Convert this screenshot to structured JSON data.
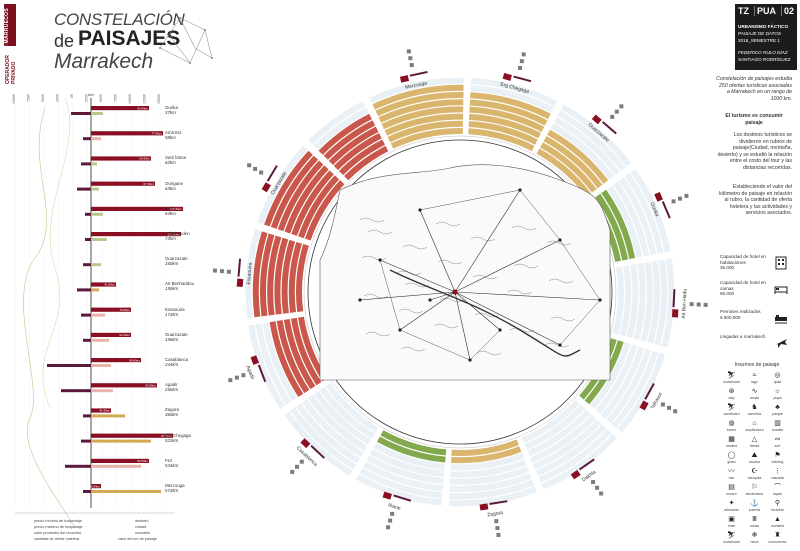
{
  "header": {
    "strip_title": "MARRAKECH\nMARRUECOS",
    "strip_sub": "OPERADOR\nPRIVADO",
    "title_line1": "CONSTELACIÓN",
    "title_de": "de",
    "title_paisajes": "PAISAJES",
    "title_city": "Marrakech"
  },
  "badge": {
    "tz": "TZ",
    "pua": "PUA",
    "num": "02",
    "line1": "URBANISMO FÁCTICO",
    "line2": "PAISAJE DE DATOS",
    "line3": "2018_SEMESTRE 1",
    "line4": "FEDERICO RULO DÍAZ",
    "line5": "SANTIAGO RODRÍGUEZ"
  },
  "intro_text": "Constelación de paisajes estudia 250 ofertas turísticas asociadas a Marrakech en un rango de 1000 km.",
  "subtitle": "El turismo es consumir paisaje",
  "para1": "Los destinos turísticos se dividieron en rubros de paisaje(Ciudad, montaña, desierto) y se estudió la relación entre el costo del tour y las distancias recorridas.",
  "para2": "Estableciendo el valor del kilómetro de paisaje en relación al rubro, la cantidad de oferta hotelera y las actividades y servicios asociados.",
  "stats": [
    {
      "label": "Capacidad de hotel en habitaciones\n35.000",
      "icon": "building-icon"
    },
    {
      "label": "Capacidad de hotel en camas\n65.000",
      "icon": "bed-icon"
    },
    {
      "label": "Pernotes realizados\n5.900.000",
      "icon": "bed-night-icon"
    },
    {
      "label": "Llegadas a marrakech",
      "icon": "plane-icon"
    }
  ],
  "insumos_title": "Insumos de paisaje",
  "insumos": [
    {
      "label": "snowboard",
      "glyph": "⛷"
    },
    {
      "label": "lago",
      "glyph": "≈"
    },
    {
      "label": "quad",
      "glyph": "◎"
    },
    {
      "label": "rally",
      "glyph": "⊛"
    },
    {
      "label": "dunas",
      "glyph": "∿"
    },
    {
      "label": "playa",
      "glyph": "☼"
    },
    {
      "label": "sandboard",
      "glyph": "⛷"
    },
    {
      "label": "camellos",
      "glyph": "♞"
    },
    {
      "label": "parque",
      "glyph": "♣"
    },
    {
      "label": "buceo",
      "glyph": "◍"
    },
    {
      "label": "arquitectura",
      "glyph": "⌂"
    },
    {
      "label": "muralla",
      "glyph": "▥"
    },
    {
      "label": "medina",
      "glyph": "▦"
    },
    {
      "label": "tienda",
      "glyph": "△"
    },
    {
      "label": "surf",
      "glyph": "∾"
    },
    {
      "label": "globo",
      "glyph": "◯"
    },
    {
      "label": "escalar",
      "glyph": "⛰"
    },
    {
      "label": "trekking",
      "glyph": "⚑"
    },
    {
      "label": "mar",
      "glyph": "〰"
    },
    {
      "label": "mezquita",
      "glyph": "☪"
    },
    {
      "label": "cascada",
      "glyph": "⋮"
    },
    {
      "label": "museo",
      "glyph": "▤"
    },
    {
      "label": "senderismo",
      "glyph": "⚐"
    },
    {
      "label": "kayak",
      "glyph": "⌒"
    },
    {
      "label": "artesanía",
      "glyph": "✦"
    },
    {
      "label": "puertos",
      "glyph": "⚓"
    },
    {
      "label": "bicicleta",
      "glyph": "⚲"
    },
    {
      "label": "hotel",
      "glyph": "▣"
    },
    {
      "label": "ruinas",
      "glyph": "Ⅲ"
    },
    {
      "label": "montaña",
      "glyph": "▲"
    },
    {
      "label": "snowboard",
      "glyph": "⛷"
    },
    {
      "label": "nieve",
      "glyph": "❄"
    },
    {
      "label": "monumento",
      "glyph": "♜"
    }
  ],
  "left_chart": {
    "axis_labels": [
      "1000€",
      "750€",
      "500€",
      "250€",
      "0€",
      "250€",
      "500€",
      "750€",
      "1000€",
      "1250€",
      "1500€"
    ],
    "zero_label": "km",
    "destinations": [
      {
        "name": "Ourika",
        "dist": "37km",
        "val": "56 €/km"
      },
      {
        "name": "Amizmiz",
        "dist": "58km",
        "val": "77 €/km"
      },
      {
        "name": "Setti fatma",
        "dist": "62km",
        "val": "60 €/km"
      },
      {
        "name": "Ourigane",
        "dist": "63km",
        "val": "67 €/km"
      },
      {
        "name": "Imlil",
        "dist": "64km",
        "val": "151 €/km"
      },
      {
        "name": "Ouksimeden",
        "dist": "73km",
        "val": "220 €/km"
      },
      {
        "name": "Ouarzazate",
        "dist": "160km",
        "val": ""
      },
      {
        "name": "Aït Benhaddou",
        "dist": "190km",
        "val": "41 €/km"
      },
      {
        "name": "Essaouira",
        "dist": "173km",
        "val": "79 €/km"
      },
      {
        "name": "Ouarzazate",
        "dist": "196km",
        "val": "62 €/km"
      },
      {
        "name": "Casablanca",
        "dist": "244km",
        "val": "80 €/km"
      },
      {
        "name": "Agadir",
        "dist": "256km",
        "val": "93 €/km"
      },
      {
        "name": "Zagora",
        "dist": "360km",
        "val": "41 €/km"
      },
      {
        "name": "Erg Chegaga",
        "dist": "523km",
        "val": "87 €/km"
      },
      {
        "name": "Fez",
        "dist": "534km",
        "val": "93 €/km"
      },
      {
        "name": "Merzouga",
        "dist": "573km",
        "val": "30 €/km"
      }
    ],
    "legend": [
      "precio mínimo de hospedaje",
      "precio máximo de hospedaje",
      "valor promedio del recorrido",
      "cantidad de oferta hotelera"
    ],
    "legend2": [
      "desierto",
      "ciudad",
      "montaña"
    ],
    "legend3": "valor del km de paisaje"
  },
  "wheel": {
    "labels": [
      "Merzouga",
      "Erg Chegaga",
      "Ouarzazate",
      "Ourika",
      "Aït Ben Hadu",
      "Tafraout",
      "Dakhla",
      "Zagora",
      "Ifrane",
      "Casablanca",
      "Agadir",
      "Essaouira",
      "Ouarzazate"
    ],
    "colors": {
      "desert": "#d3a853",
      "city": "#c0392b",
      "mountain": "#6d9a2f",
      "pale": "#dbe6f0",
      "accent": "#8b0f22"
    },
    "map_labels": [
      "Marrakech",
      "Zagora",
      "Erg Chegaga",
      "Casablanca",
      "Essaouira",
      "Agadir",
      "Fez",
      "Merzouga",
      "Rabat"
    ]
  }
}
